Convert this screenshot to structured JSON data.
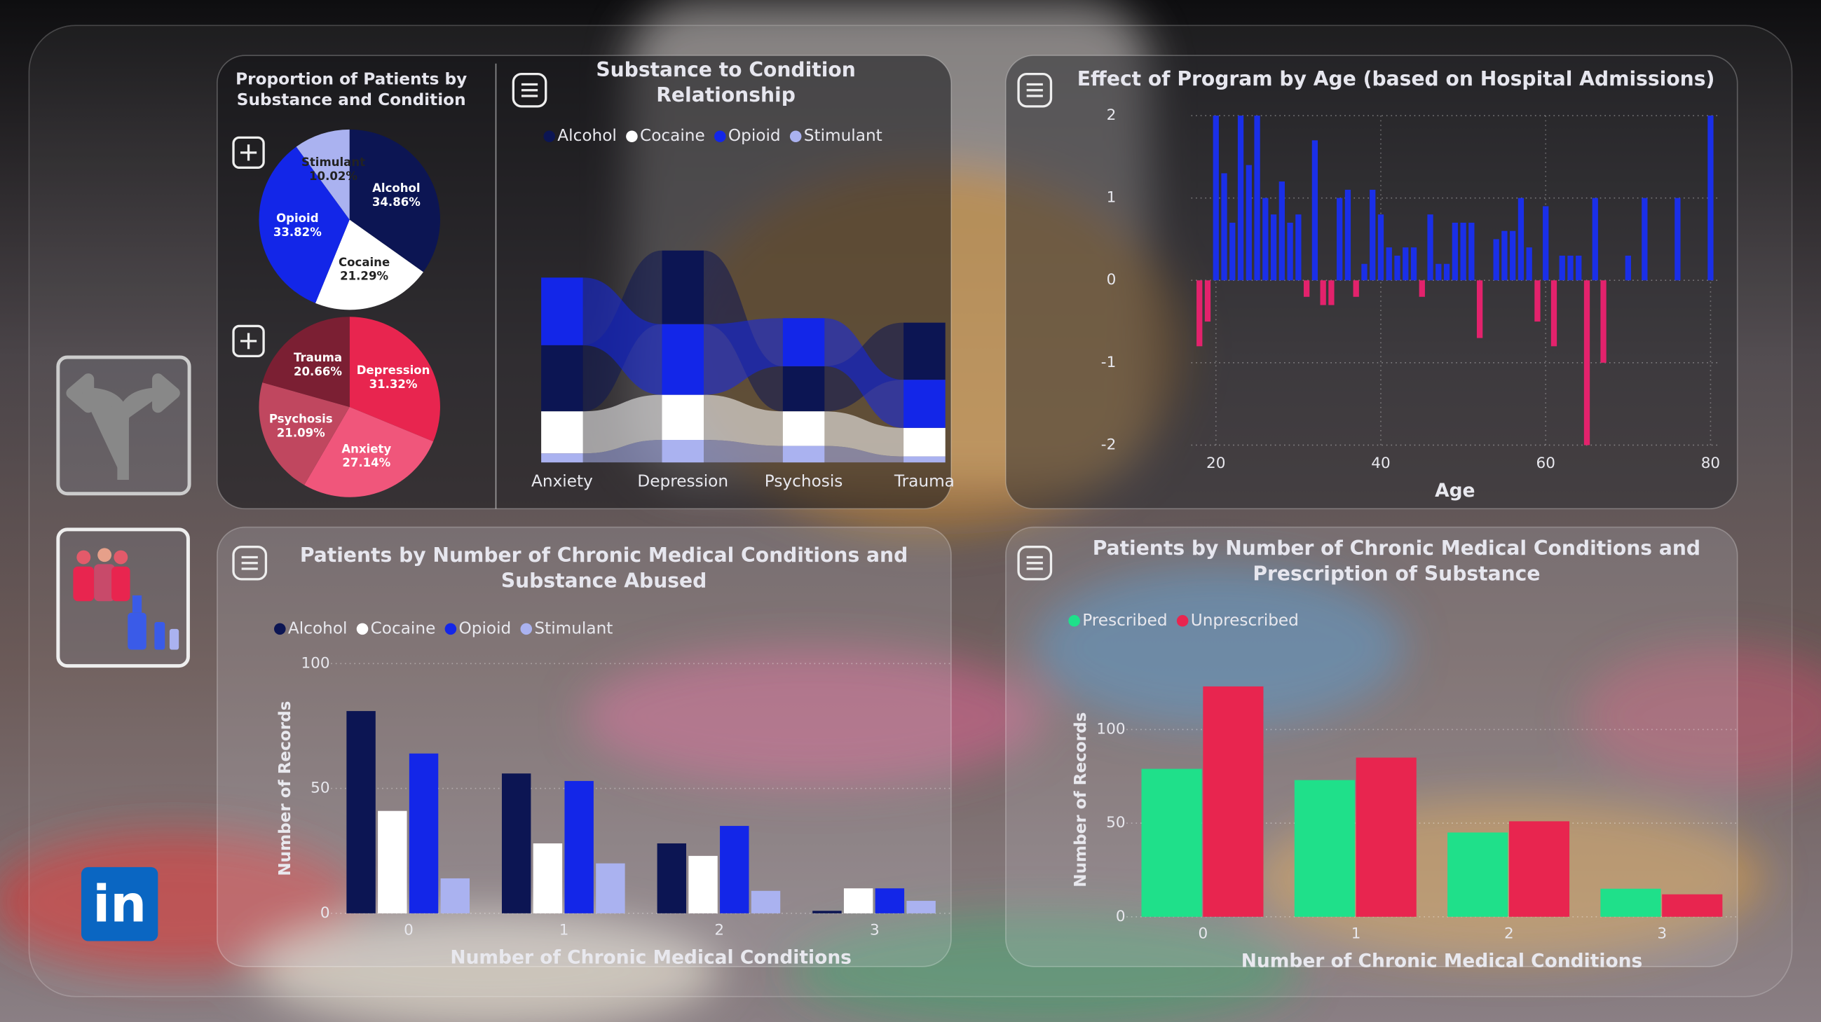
{
  "nav": {
    "linkedin": "in"
  },
  "chart_data": [
    {
      "type": "pie",
      "title": "Proportion of Patients by Substance and Condition",
      "categories": [
        "Alcohol",
        "Cocaine",
        "Opioid",
        "Stimulant"
      ],
      "values": [
        34.86,
        21.29,
        33.82,
        10.02
      ],
      "value_labels": [
        "34.86%",
        "21.29%",
        "33.82%",
        "10.02%"
      ],
      "colors": [
        "#0c1553",
        "#ffffff",
        "#1326e8",
        "#aab2f0"
      ]
    },
    {
      "type": "pie",
      "categories": [
        "Depression",
        "Anxiety",
        "Psychosis",
        "Trauma"
      ],
      "values": [
        31.32,
        27.14,
        21.09,
        20.66
      ],
      "value_labels": [
        "31.32%",
        "27.14%",
        "21.09%",
        "20.66%"
      ],
      "colors": [
        "#e8254f",
        "#f0567b",
        "#c0475f",
        "#7b1f33"
      ]
    },
    {
      "type": "ribbon",
      "title": "Substance to Condition Relationship",
      "categories": [
        "Anxiety",
        "Depression",
        "Psychosis",
        "Trauma"
      ],
      "series": [
        {
          "name": "Alcohol",
          "color": "#0c1553",
          "values": [
            44,
            49,
            30,
            38
          ]
        },
        {
          "name": "Cocaine",
          "color": "#ffffff",
          "values": [
            28,
            30,
            23,
            19
          ]
        },
        {
          "name": "Opioid",
          "color": "#1326e8",
          "values": [
            45,
            47,
            32,
            32
          ]
        },
        {
          "name": "Stimulant",
          "color": "#aab2f0",
          "values": [
            6,
            15,
            11,
            4
          ]
        }
      ]
    },
    {
      "type": "bar",
      "title": "Effect of Program by Age (based on Hospital Admissions)",
      "xlabel": "Age",
      "x": [
        18,
        19,
        20,
        21,
        22,
        23,
        24,
        25,
        26,
        27,
        28,
        29,
        30,
        31,
        32,
        33,
        34,
        35,
        36,
        37,
        38,
        39,
        40,
        41,
        42,
        43,
        44,
        45,
        46,
        47,
        48,
        49,
        50,
        51,
        52,
        54,
        55,
        56,
        57,
        58,
        59,
        60,
        61,
        62,
        63,
        64,
        65,
        66,
        67,
        70,
        72,
        76,
        80
      ],
      "values": [
        -0.8,
        -0.5,
        2,
        1.3,
        0.7,
        2,
        1.4,
        2,
        1,
        0.8,
        1.2,
        0.7,
        0.8,
        -0.2,
        1.7,
        -0.3,
        -0.3,
        1,
        1.1,
        -0.2,
        0.2,
        1.1,
        0.8,
        0.4,
        0.3,
        0.4,
        0.4,
        -0.2,
        0.8,
        0.2,
        0.2,
        0.7,
        0.7,
        0.7,
        -0.7,
        0.5,
        0.6,
        0.6,
        1,
        0.4,
        -0.5,
        0.9,
        -0.8,
        0.3,
        0.3,
        0.3,
        -2,
        1,
        -1,
        0.3,
        1,
        1,
        2
      ],
      "color": "#1a2fe8",
      "negative_color": "#e3226c",
      "xlim": [
        17,
        81
      ],
      "xticks": [
        20,
        40,
        60,
        80
      ],
      "ylim": [
        -2,
        2
      ],
      "yticks": [
        -2,
        -1,
        0,
        1,
        2
      ],
      "grid": true
    },
    {
      "type": "grouped_bar",
      "title": "Patients by Number of Chronic Medical Conditions and Substance Abused",
      "xlabel": "Number of Chronic Medical Conditions",
      "ylabel": "Number of Records",
      "categories": [
        "0",
        "1",
        "2",
        "3"
      ],
      "series": [
        {
          "name": "Alcohol",
          "color": "#0c1553",
          "values": [
            81,
            56,
            28,
            1
          ]
        },
        {
          "name": "Cocaine",
          "color": "#ffffff",
          "values": [
            41,
            28,
            23,
            10
          ]
        },
        {
          "name": "Opioid",
          "color": "#1326e8",
          "values": [
            64,
            53,
            35,
            10
          ]
        },
        {
          "name": "Stimulant",
          "color": "#aab2f0",
          "values": [
            14,
            20,
            9,
            5
          ]
        }
      ],
      "ylim": [
        0,
        100
      ],
      "yticks": [
        0,
        50,
        100
      ],
      "grid": true
    },
    {
      "type": "grouped_bar",
      "title": "Patients by Number of Chronic Medical Conditions and Prescription of Substance",
      "xlabel": "Number of Chronic Medical Conditions",
      "ylabel": "Number of Records",
      "categories": [
        "0",
        "1",
        "2",
        "3"
      ],
      "series": [
        {
          "name": "Prescribed",
          "color": "#1fe08a",
          "values": [
            79,
            73,
            45,
            15
          ]
        },
        {
          "name": "Unprescribed",
          "color": "#e8254f",
          "values": [
            123,
            85,
            51,
            12
          ]
        }
      ],
      "ylim": [
        0,
        125
      ],
      "yticks": [
        0,
        50,
        100
      ],
      "grid": true
    }
  ]
}
